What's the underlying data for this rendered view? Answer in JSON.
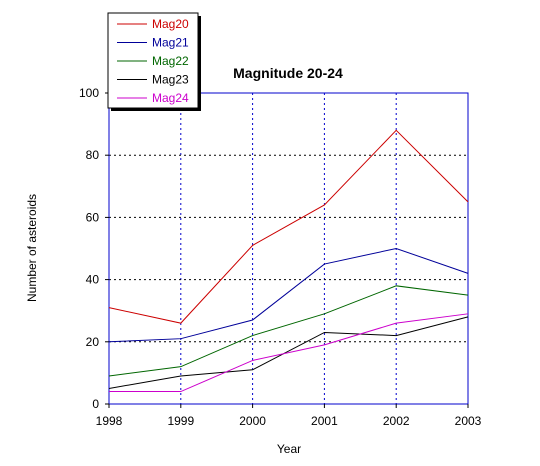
{
  "chart_data": {
    "type": "line",
    "title": "Magnitude 20-24",
    "xlabel": "Year",
    "ylabel": "Number of asteroids",
    "x": [
      1998,
      1999,
      2000,
      2001,
      2002,
      2003
    ],
    "xlim": [
      1998,
      2003
    ],
    "ylim": [
      0,
      100
    ],
    "yticks": [
      0,
      20,
      40,
      60,
      80,
      100
    ],
    "grid": true,
    "legend_position": "top-left",
    "series": [
      {
        "name": "Mag20",
        "color": "#cc0000",
        "values": [
          31,
          26,
          51,
          64,
          88,
          65
        ]
      },
      {
        "name": "Mag21",
        "color": "#000099",
        "values": [
          20,
          21,
          27,
          45,
          50,
          42
        ]
      },
      {
        "name": "Mag22",
        "color": "#006600",
        "values": [
          9,
          12,
          22,
          29,
          38,
          35
        ]
      },
      {
        "name": "Mag23",
        "color": "#000000",
        "values": [
          5,
          9,
          11,
          23,
          22,
          28
        ]
      },
      {
        "name": "Mag24",
        "color": "#cc00cc",
        "values": [
          4,
          4,
          14,
          19,
          26,
          29
        ]
      }
    ]
  }
}
